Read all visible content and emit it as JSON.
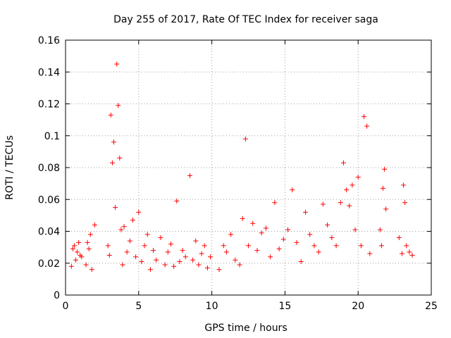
{
  "chart_data": {
    "type": "scatter",
    "title": "Day 255 of 2017, Rate Of TEC Index for receiver saga",
    "xlabel": "GPS time / hours",
    "ylabel": "ROTI / TECUs",
    "xlim": [
      0,
      25
    ],
    "ylim": [
      0,
      0.16
    ],
    "xticks": [
      0,
      5,
      10,
      15,
      20,
      25
    ],
    "yticks": [
      0,
      0.02,
      0.04,
      0.06,
      0.08,
      0.1,
      0.12,
      0.14,
      0.16
    ],
    "xtick_labels": [
      "0",
      "5",
      "10",
      "15",
      "20",
      "25"
    ],
    "ytick_labels": [
      "0",
      "0.02",
      "0.04",
      "0.06",
      "0.08",
      "0.1",
      "0.12",
      "0.14",
      "0.16"
    ],
    "grid": true,
    "marker": "+",
    "color": "#ff0000",
    "series": [
      {
        "x": [
          0.4,
          0.5,
          0.6,
          0.7,
          0.8,
          0.9,
          1.0,
          1.1,
          1.4,
          1.5,
          1.6,
          1.7,
          1.8,
          2.0,
          2.9,
          3.0,
          3.1,
          3.2,
          3.3,
          3.4,
          3.5,
          3.6,
          3.7,
          3.8,
          3.9,
          4.0,
          4.2,
          4.4,
          4.6,
          4.8,
          5.0,
          5.2,
          5.4,
          5.6,
          5.8,
          6.0,
          6.2,
          6.5,
          6.8,
          7.0,
          7.2,
          7.4,
          7.6,
          7.8,
          8.0,
          8.2,
          8.5,
          8.7,
          8.9,
          9.1,
          9.3,
          9.5,
          9.7,
          9.9,
          10.5,
          10.8,
          11.0,
          11.3,
          11.6,
          11.9,
          12.1,
          12.3,
          12.5,
          12.8,
          13.1,
          13.4,
          13.7,
          14.0,
          14.3,
          14.6,
          14.9,
          15.2,
          15.5,
          15.8,
          16.1,
          16.4,
          16.7,
          17.0,
          17.3,
          17.6,
          17.9,
          18.2,
          18.5,
          18.8,
          19.0,
          19.2,
          19.4,
          19.6,
          19.8,
          20.0,
          20.2,
          20.4,
          20.6,
          20.8,
          21.5,
          21.6,
          21.7,
          21.8,
          21.9,
          22.8,
          23.0,
          23.1,
          23.2,
          23.3,
          23.5,
          23.7
        ],
        "y": [
          0.018,
          0.029,
          0.031,
          0.022,
          0.027,
          0.033,
          0.025,
          0.024,
          0.019,
          0.033,
          0.029,
          0.038,
          0.016,
          0.044,
          0.031,
          0.025,
          0.113,
          0.083,
          0.096,
          0.055,
          0.145,
          0.119,
          0.086,
          0.041,
          0.019,
          0.043,
          0.027,
          0.034,
          0.047,
          0.024,
          0.052,
          0.021,
          0.031,
          0.038,
          0.016,
          0.028,
          0.022,
          0.036,
          0.019,
          0.027,
          0.032,
          0.018,
          0.059,
          0.021,
          0.028,
          0.024,
          0.075,
          0.022,
          0.034,
          0.019,
          0.026,
          0.031,
          0.017,
          0.024,
          0.016,
          0.031,
          0.027,
          0.038,
          0.022,
          0.019,
          0.048,
          0.098,
          0.031,
          0.045,
          0.028,
          0.039,
          0.042,
          0.024,
          0.058,
          0.029,
          0.035,
          0.041,
          0.066,
          0.033,
          0.021,
          0.052,
          0.038,
          0.031,
          0.027,
          0.057,
          0.044,
          0.036,
          0.031,
          0.058,
          0.083,
          0.066,
          0.056,
          0.069,
          0.041,
          0.074,
          0.031,
          0.112,
          0.106,
          0.026,
          0.041,
          0.031,
          0.067,
          0.079,
          0.054,
          0.036,
          0.026,
          0.069,
          0.058,
          0.031,
          0.027,
          0.025
        ]
      }
    ]
  }
}
